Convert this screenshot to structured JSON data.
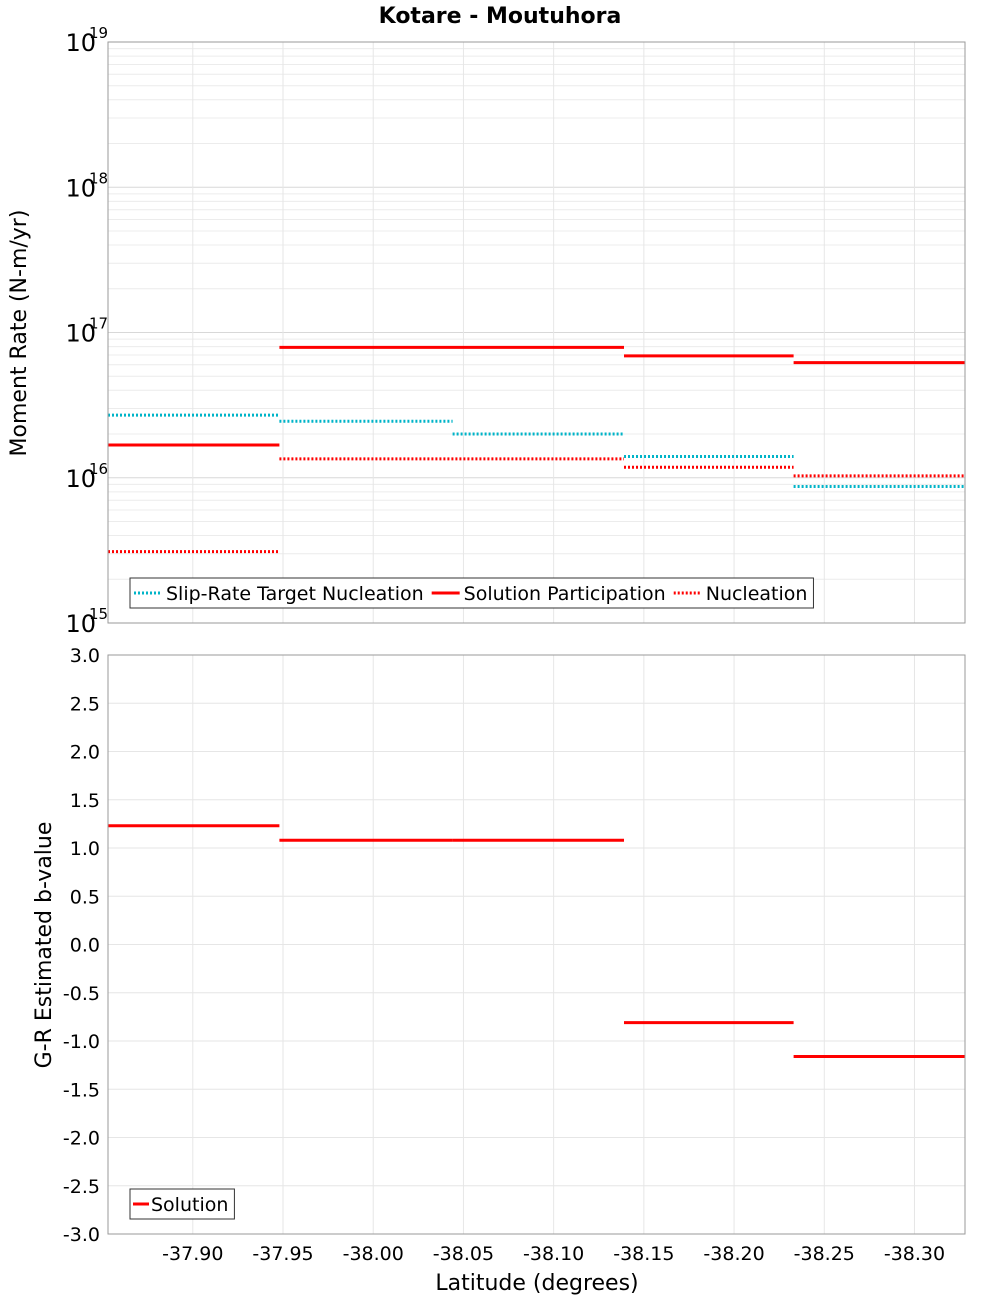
{
  "title": "Kotare - Moutuhora",
  "chart_data": [
    {
      "type": "line",
      "name": "moment-rate",
      "ylabel": "Moment Rate (N-m/yr)",
      "yscale": "log",
      "ylim": [
        1000000000000000.0,
        1e+19
      ],
      "yticks": [
        {
          "base": "10",
          "exp": "15",
          "value": 1000000000000000.0
        },
        {
          "base": "10",
          "exp": "16",
          "value": 1e+16
        },
        {
          "base": "10",
          "exp": "17",
          "value": 1e+17
        },
        {
          "base": "10",
          "exp": "18",
          "value": 1e+18
        },
        {
          "base": "10",
          "exp": "19",
          "value": 1e+19
        }
      ],
      "grid": true,
      "legend_position": "bottom-left",
      "series": [
        {
          "name": "Slip-Rate Target Nucleation",
          "color": "#00b4c8",
          "style": "dotted",
          "segments": [
            {
              "x0": -37.853,
              "x1": -37.948,
              "y": 2.7e+16
            },
            {
              "x0": -37.948,
              "x1": -38.044,
              "y": 2.45e+16
            },
            {
              "x0": -38.044,
              "x1": -38.139,
              "y": 2e+16
            },
            {
              "x0": -38.139,
              "x1": -38.233,
              "y": 1.4e+16
            },
            {
              "x0": -38.233,
              "x1": -38.328,
              "y": 8700000000000000.0
            }
          ]
        },
        {
          "name": "Solution Participation",
          "color": "#ff0000",
          "style": "solid",
          "segments": [
            {
              "x0": -37.853,
              "x1": -37.948,
              "y": 1.68e+16
            },
            {
              "x0": -37.948,
              "x1": -38.139,
              "y": 7.9e+16
            },
            {
              "x0": -38.139,
              "x1": -38.233,
              "y": 6.9e+16
            },
            {
              "x0": -38.233,
              "x1": -38.328,
              "y": 6.2e+16
            }
          ]
        },
        {
          "name": "Nucleation",
          "color": "#ff0000",
          "style": "dotted",
          "segments": [
            {
              "x0": -37.853,
              "x1": -37.948,
              "y": 3100000000000000.0
            },
            {
              "x0": -37.948,
              "x1": -38.139,
              "y": 1.35e+16
            },
            {
              "x0": -38.139,
              "x1": -38.233,
              "y": 1.18e+16
            },
            {
              "x0": -38.233,
              "x1": -38.328,
              "y": 1.03e+16
            }
          ]
        }
      ]
    },
    {
      "type": "line",
      "name": "b-value",
      "ylabel": "G-R Estimated b-value",
      "xlabel": "Latitude (degrees)",
      "ylim": [
        -3.0,
        3.0
      ],
      "yticks": [
        "-3.0",
        "-2.5",
        "-2.0",
        "-1.5",
        "-1.0",
        "-0.5",
        "0.0",
        "0.5",
        "1.0",
        "1.5",
        "2.0",
        "2.5",
        "3.0"
      ],
      "xlim": [
        -37.853,
        -38.328
      ],
      "xticks": [
        "-37.90",
        "-37.95",
        "-38.00",
        "-38.05",
        "-38.10",
        "-38.15",
        "-38.20",
        "-38.25",
        "-38.30"
      ],
      "grid": true,
      "legend_position": "bottom-left",
      "series": [
        {
          "name": "Solution",
          "color": "#ff0000",
          "style": "solid",
          "segments": [
            {
              "x0": -37.853,
              "x1": -37.948,
              "y": 1.23
            },
            {
              "x0": -37.948,
              "x1": -38.044,
              "y": 1.08
            },
            {
              "x0": -38.044,
              "x1": -38.139,
              "y": 1.08
            },
            {
              "x0": -38.139,
              "x1": -38.233,
              "y": -0.81
            },
            {
              "x0": -38.233,
              "x1": -38.328,
              "y": -1.16
            }
          ]
        }
      ]
    }
  ]
}
